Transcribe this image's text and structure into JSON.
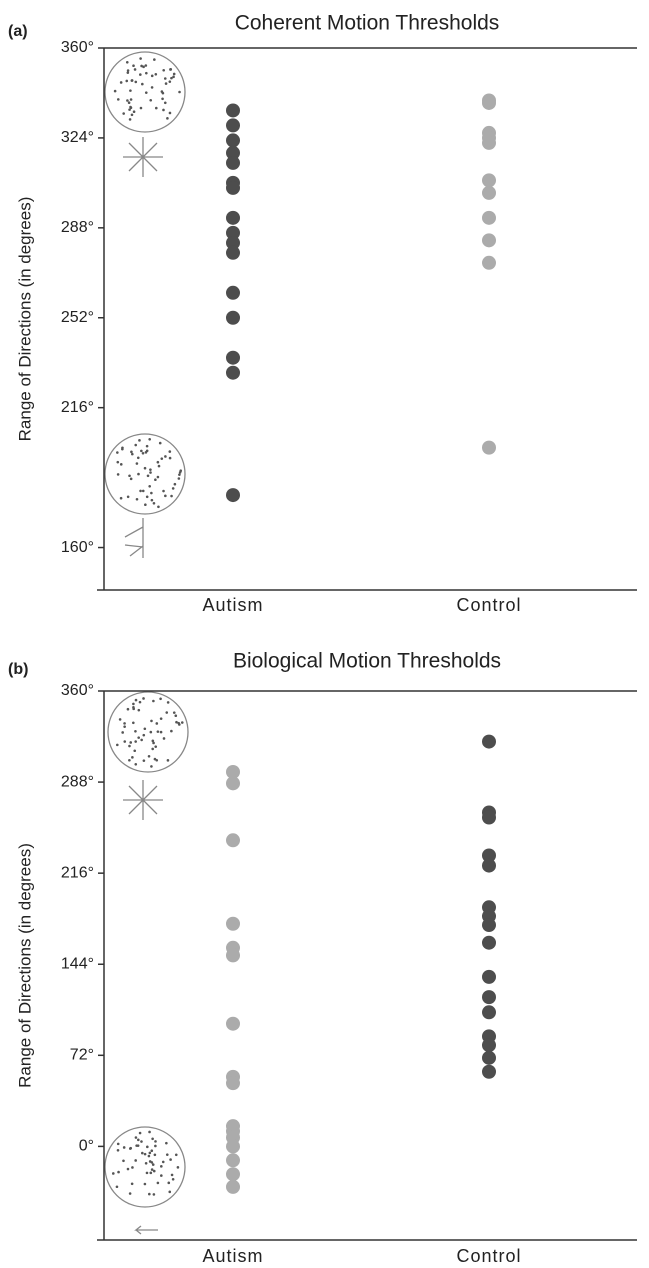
{
  "chart_data": [
    {
      "type": "strip",
      "label": "(a)",
      "title": "Coherent Motion Thresholds",
      "ylabel": "Range of Directions (in degrees)",
      "categories": [
        "Autism",
        "Control"
      ],
      "series": [
        {
          "color": "#4d4d4d",
          "values": [
            335,
            329,
            323,
            318,
            314,
            306,
            304,
            292,
            286,
            282,
            278,
            262,
            252,
            236,
            230,
            181
          ]
        },
        {
          "color": "#ababab",
          "values": [
            339,
            338,
            326,
            324,
            322,
            307,
            302,
            292,
            283,
            274,
            200
          ]
        }
      ],
      "ylim": [
        143,
        360
      ],
      "yticks": [
        {
          "value": 360,
          "label": "360°"
        },
        {
          "value": 324,
          "label": "324°"
        },
        {
          "value": 288,
          "label": "288°"
        },
        {
          "value": 252,
          "label": "252°"
        },
        {
          "value": 216,
          "label": "216°"
        },
        {
          "value": 160,
          "label": "160°"
        }
      ]
    },
    {
      "type": "strip",
      "label": "(b)",
      "title": "Biological Motion Thresholds",
      "ylabel": "Range of Directions (in degrees)",
      "categories": [
        "Autism",
        "Control"
      ],
      "series": [
        {
          "color": "#ababab",
          "values": [
            296,
            287,
            242,
            176,
            157,
            151,
            97,
            55,
            50,
            16,
            12,
            7,
            0,
            -11,
            -22,
            -32
          ]
        },
        {
          "color": "#4d4d4d",
          "values": [
            320,
            264,
            260,
            230,
            222,
            189,
            182,
            175,
            161,
            134,
            118,
            106,
            87,
            80,
            70,
            59
          ]
        }
      ],
      "ylim": [
        -74,
        360
      ],
      "yticks": [
        {
          "value": 360,
          "label": "360°"
        },
        {
          "value": 288,
          "label": "288°"
        },
        {
          "value": 216,
          "label": "216°"
        },
        {
          "value": 144,
          "label": "144°"
        },
        {
          "value": 72,
          "label": "72°"
        },
        {
          "value": 0,
          "label": "0°"
        }
      ]
    }
  ]
}
